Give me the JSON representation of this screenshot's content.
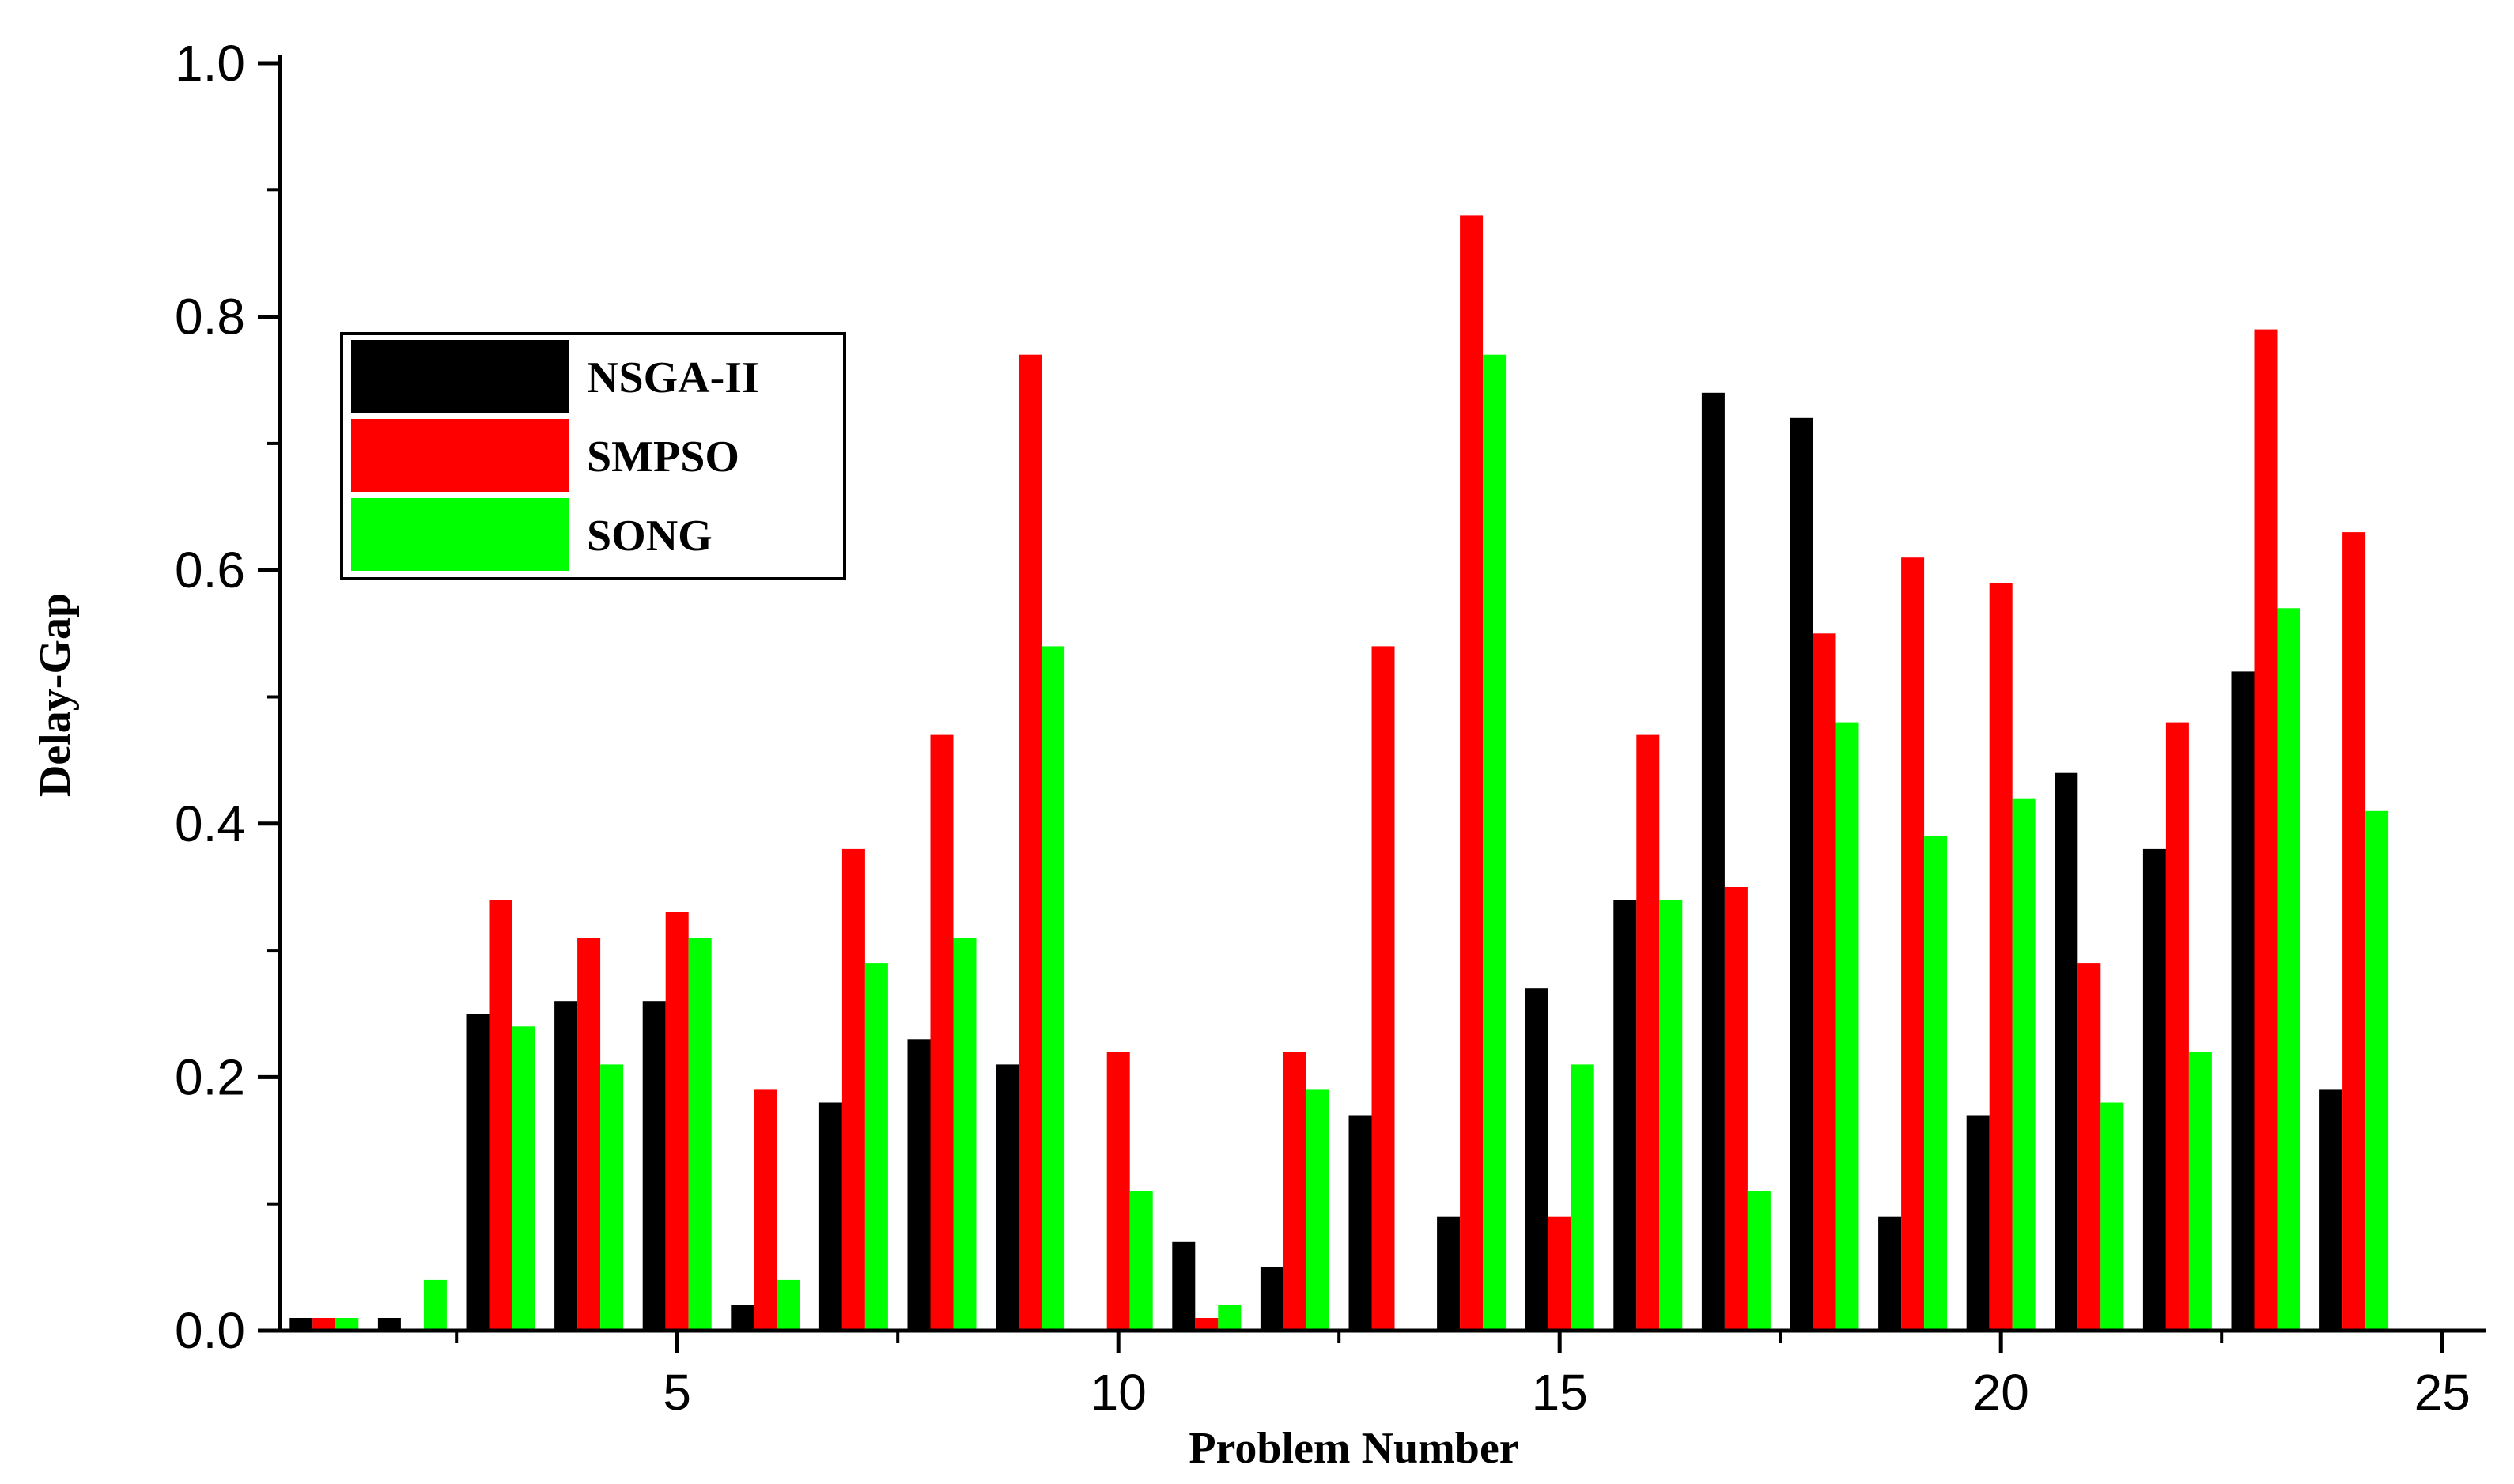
{
  "chart_data": {
    "type": "bar",
    "title": "",
    "xlabel": "Problem Number",
    "ylabel": "Delay-Gap",
    "xlim": [
      0.5,
      25.5
    ],
    "ylim": [
      0,
      1.0
    ],
    "x": [
      1,
      2,
      3,
      4,
      5,
      6,
      7,
      8,
      9,
      10,
      11,
      12,
      13,
      14,
      15,
      16,
      17,
      18,
      19,
      20,
      21,
      22,
      23,
      24,
      25
    ],
    "x_ticks": [
      5,
      10,
      15,
      20,
      25
    ],
    "x_tick_labels": [
      "5",
      "10",
      "15",
      "20",
      "25"
    ],
    "y_ticks": [
      0,
      0.2,
      0.4,
      0.6,
      0.8,
      1.0
    ],
    "y_tick_labels": [
      "0.0",
      "0.2",
      "0.4",
      "0.6",
      "0.8",
      "1.0"
    ],
    "grid": false,
    "legend_position": "upper-left",
    "series": [
      {
        "name": "NSGA-II",
        "color": "#000000",
        "values": [
          0.01,
          0.01,
          0.25,
          0.26,
          0.26,
          0.02,
          0.18,
          0.23,
          0.21,
          0,
          0.07,
          0.05,
          0.17,
          0.09,
          0.27,
          0.34,
          0.74,
          0.72,
          0.09,
          0.17,
          0.44,
          0.38,
          0.52,
          0.19,
          0
        ]
      },
      {
        "name": "SMPSO",
        "color": "#ff0000",
        "values": [
          0.01,
          0,
          0.34,
          0.31,
          0.33,
          0.19,
          0.38,
          0.47,
          0.77,
          0.22,
          0.01,
          0.22,
          0.54,
          0.88,
          0.09,
          0.47,
          0.35,
          0.55,
          0.61,
          0.59,
          0.29,
          0.48,
          0.79,
          0.63,
          0
        ]
      },
      {
        "name": "SONG",
        "color": "#00ff00",
        "values": [
          0.01,
          0.04,
          0.24,
          0.21,
          0.31,
          0.04,
          0.29,
          0.31,
          0.54,
          0.11,
          0.02,
          0.19,
          0,
          0.77,
          0.21,
          0.34,
          0.11,
          0.48,
          0.39,
          0.42,
          0.18,
          0.22,
          0.57,
          0.41,
          0
        ]
      }
    ]
  }
}
